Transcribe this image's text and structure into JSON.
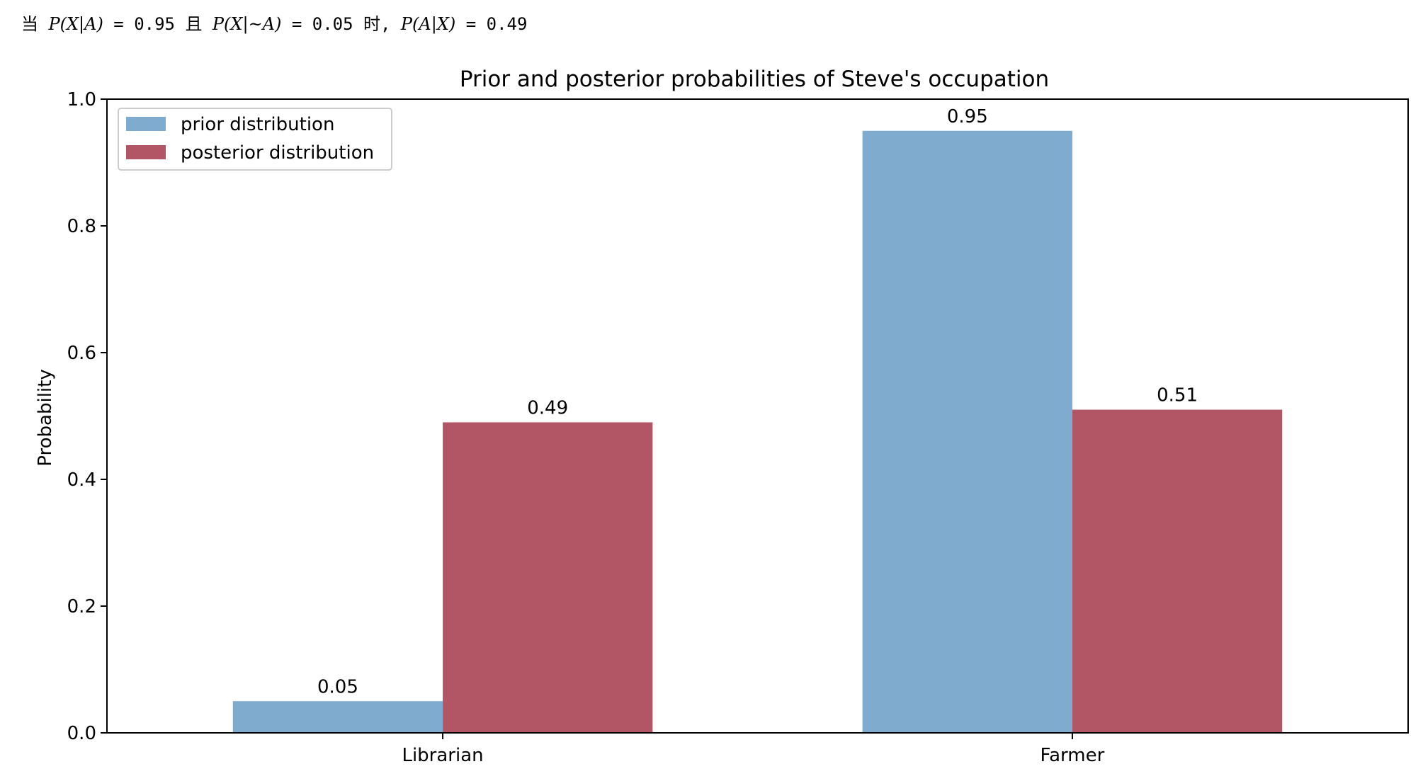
{
  "header": {
    "w1": "当 ",
    "m1": "P(X|A)",
    "t1": " = 0.95 ",
    "w2": "且 ",
    "m2": "P(X|~A)",
    "t2": " = 0.05 ",
    "w3": "时, ",
    "m3": "P(A|X)",
    "t3": " = 0.49"
  },
  "chart_data": {
    "type": "bar",
    "title": "Prior and posterior probabilities of Steve's occupation",
    "xlabel": "",
    "ylabel": "Probability",
    "categories": [
      "Librarian",
      "Farmer"
    ],
    "series": [
      {
        "name": "prior distribution",
        "values": [
          0.05,
          0.95
        ],
        "labels": [
          "0.05",
          "0.95"
        ],
        "color": "#7facce"
      },
      {
        "name": "posterior distribution",
        "values": [
          0.49,
          0.51
        ],
        "labels": [
          "0.49",
          "0.51"
        ],
        "color": "#b25666"
      }
    ],
    "ylim": [
      0,
      1.0
    ],
    "yticks": [
      0.0,
      0.2,
      0.4,
      0.6,
      0.8,
      1.0
    ],
    "ytick_labels": [
      "0.0",
      "0.2",
      "0.4",
      "0.6",
      "0.8",
      "1.0"
    ],
    "grid": false,
    "legend": "upper-left"
  }
}
